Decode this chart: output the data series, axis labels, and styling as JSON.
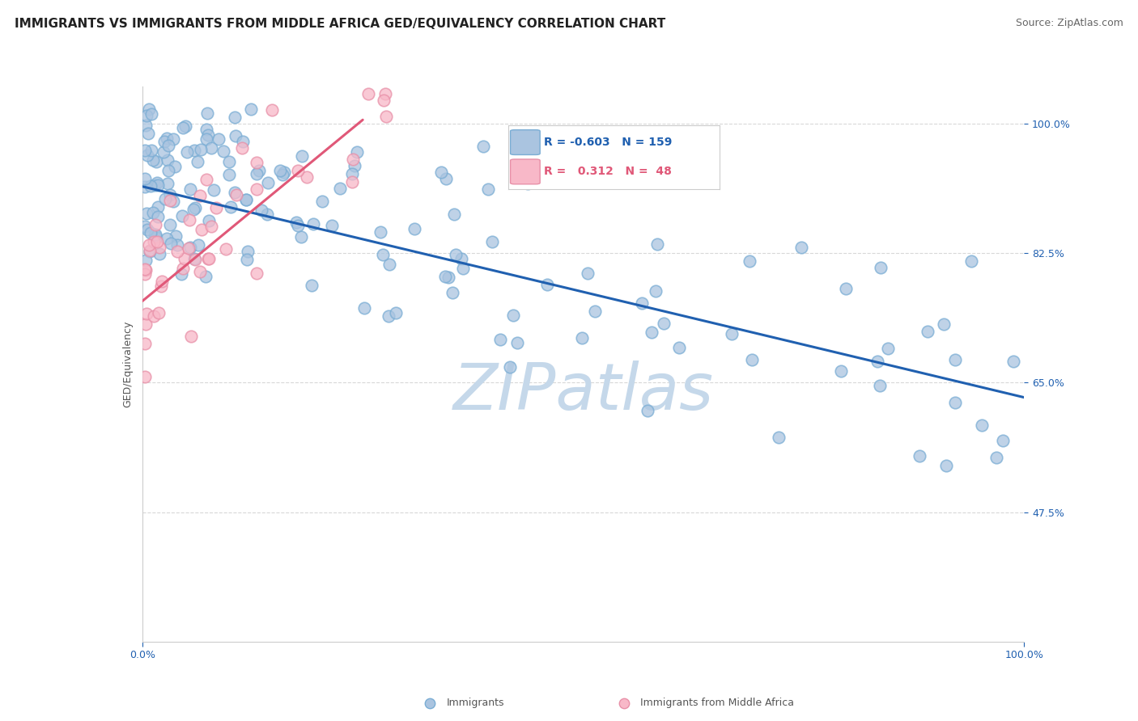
{
  "title": "IMMIGRANTS VS IMMIGRANTS FROM MIDDLE AFRICA GED/EQUIVALENCY CORRELATION CHART",
  "source": "Source: ZipAtlas.com",
  "ylabel": "GED/Equivalency",
  "xlim": [
    0.0,
    100.0
  ],
  "ylim": [
    30.0,
    105.0
  ],
  "yticks": [
    47.5,
    65.0,
    82.5,
    100.0
  ],
  "ytick_labels": [
    "47.5%",
    "65.0%",
    "82.5%",
    "100.0%"
  ],
  "blue_R": -0.603,
  "blue_N": 159,
  "pink_R": 0.312,
  "pink_N": 48,
  "blue_color": "#aac4e0",
  "blue_edge_color": "#7aadd4",
  "blue_line_color": "#2060b0",
  "pink_color": "#f8b8c8",
  "pink_edge_color": "#e890a8",
  "pink_line_color": "#e05878",
  "background_color": "#ffffff",
  "grid_color": "#d8d8d8",
  "watermark_color": "#c5d8ea",
  "blue_line_x0": 0.0,
  "blue_line_x1": 100.0,
  "blue_line_y0": 91.5,
  "blue_line_y1": 63.0,
  "pink_line_x0": 0.0,
  "pink_line_x1": 25.0,
  "pink_line_y0": 76.0,
  "pink_line_y1": 100.5,
  "title_fontsize": 11,
  "axis_fontsize": 9,
  "tick_fontsize": 9,
  "source_fontsize": 9
}
